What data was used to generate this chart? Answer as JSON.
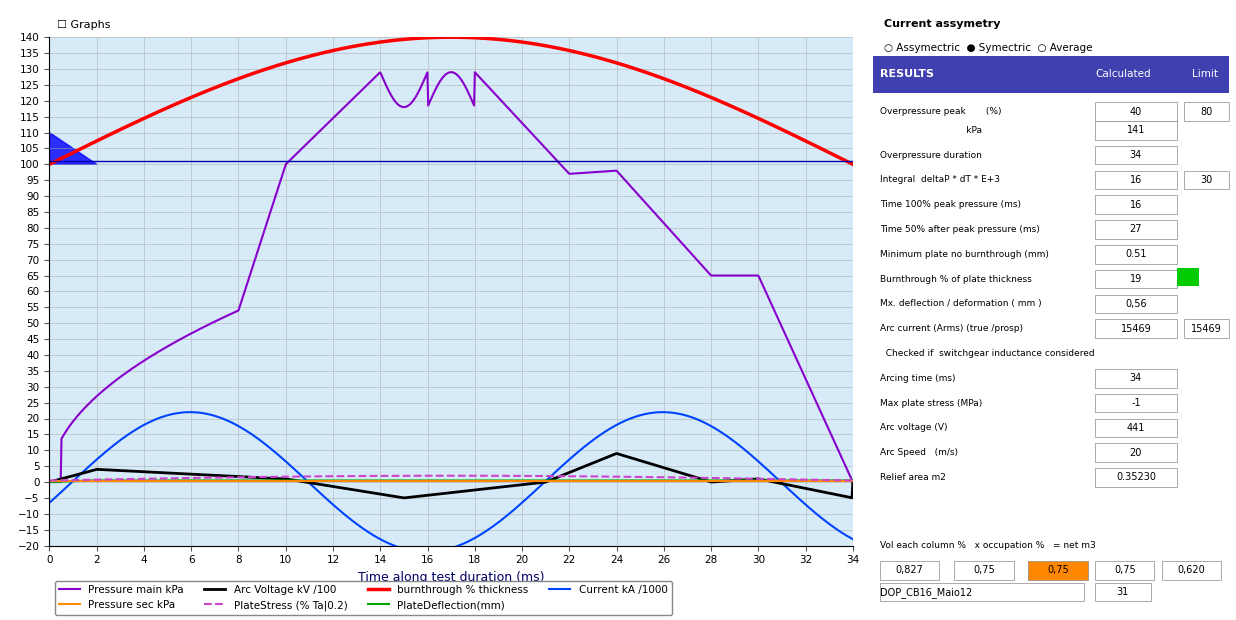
{
  "title": "Graphs",
  "xlabel": "Time along test duration (ms)",
  "ylabel": "",
  "xlim": [
    0,
    34
  ],
  "ylim": [
    -20,
    140
  ],
  "yticks": [
    -20,
    -15,
    -10,
    -5,
    0,
    5,
    10,
    15,
    20,
    25,
    30,
    35,
    40,
    45,
    50,
    55,
    60,
    65,
    70,
    75,
    80,
    85,
    90,
    95,
    100,
    105,
    110,
    115,
    120,
    125,
    130,
    135,
    140
  ],
  "xticks": [
    0,
    2,
    4,
    6,
    8,
    10,
    12,
    14,
    16,
    18,
    20,
    22,
    24,
    26,
    28,
    30,
    32,
    34
  ],
  "bg_color": "#d6eaf8",
  "grid_color": "#aaaaaa",
  "legend_labels": [
    "Pressure main kPa",
    "Pressure sec kPa",
    "Arc Voltage kV /100",
    "PlateStress (% Ta|0.2)",
    "burnthrough % thickness",
    "PlateDeflection(mm)",
    "Current kA /1000"
  ],
  "legend_colors": [
    "#8800aa",
    "#ff8800",
    "#000000",
    "#cc44cc",
    "#ff0000",
    "#00aa00",
    "#0055ff"
  ],
  "legend_linestyles": [
    "-",
    "-",
    "-",
    "--",
    "-",
    "-",
    "-"
  ],
  "line_widths": [
    1.5,
    1.5,
    2.0,
    1.5,
    2.5,
    1.5,
    1.5
  ],
  "right_panel_bg": "#e8e8e8"
}
